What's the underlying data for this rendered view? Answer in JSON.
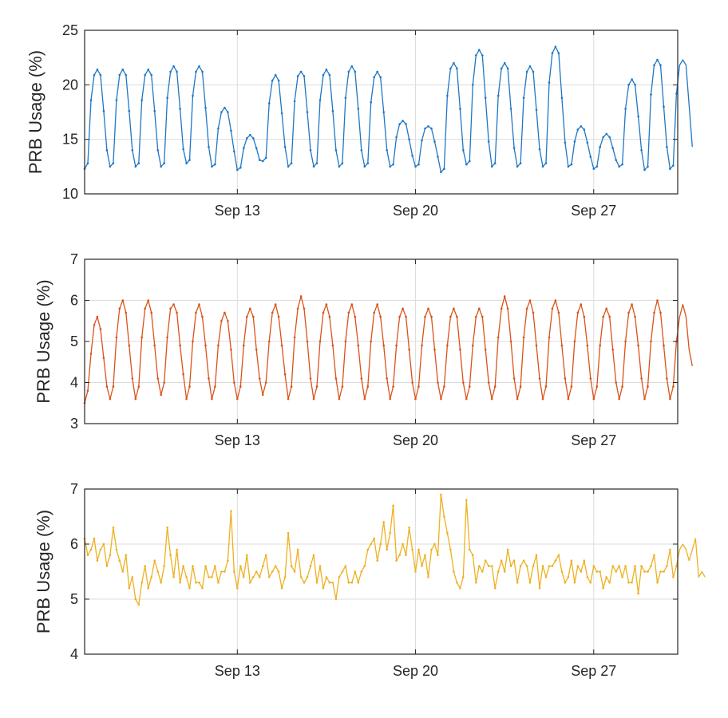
{
  "chart_data": [
    {
      "type": "line",
      "title": "",
      "xlabel": "",
      "ylabel": "PRB Usage (%)",
      "ylim": [
        10,
        25
      ],
      "yticks": [
        10,
        15,
        20,
        25
      ],
      "xlim_days": [
        7,
        30.3
      ],
      "xticks": [
        {
          "day": 13,
          "label": "Sep 13"
        },
        {
          "day": 20,
          "label": "Sep 20"
        },
        {
          "day": 27,
          "label": "Sep 27"
        }
      ],
      "grid": true,
      "color": "#1f77c4",
      "series": [
        {
          "x_start_day": 7,
          "x_step_days": 0.125,
          "daily_peaks": [
            21.5,
            21.5,
            21.5,
            21.8,
            21.8,
            18,
            15.5,
            21,
            21.3,
            21.5,
            21.8,
            21.3,
            16.8,
            16.3,
            22,
            23.2,
            22,
            21.7,
            23.5,
            16.2,
            15.5,
            20.5,
            22.3,
            22.3
          ],
          "daily_troughs": [
            12.5,
            12.5,
            12.5,
            12.5,
            12.8,
            12.5,
            12.2,
            13,
            12.5,
            12.5,
            12.5,
            12.5,
            12.5,
            12.5,
            12,
            12.7,
            12.5,
            12.5,
            12.5,
            12.5,
            12.3,
            12.5,
            12.2,
            12.3
          ],
          "values": [
            12.3,
            12.8,
            18.6,
            20.9,
            21.4,
            20.9,
            17.6,
            14.0,
            12.5,
            12.8,
            18.6,
            20.9,
            21.4,
            20.9,
            17.6,
            14.0,
            12.5,
            12.8,
            18.6,
            20.9,
            21.4,
            20.9,
            17.6,
            14.0,
            12.5,
            12.8,
            18.8,
            21.2,
            21.7,
            21.2,
            17.8,
            14.1,
            12.8,
            13.1,
            19.0,
            21.2,
            21.7,
            21.2,
            17.9,
            14.3,
            12.5,
            12.7,
            16.0,
            17.5,
            17.9,
            17.5,
            15.8,
            13.9,
            12.2,
            12.4,
            14.2,
            15.1,
            15.4,
            15.1,
            14.2,
            13.1,
            13.0,
            13.3,
            18.3,
            20.4,
            20.9,
            20.4,
            17.4,
            14.3,
            12.5,
            12.8,
            18.5,
            20.8,
            21.2,
            20.8,
            17.5,
            14.0,
            12.5,
            12.8,
            18.6,
            20.9,
            21.4,
            20.9,
            17.6,
            14.0,
            12.5,
            12.8,
            18.8,
            21.2,
            21.7,
            21.2,
            17.8,
            14.0,
            12.5,
            12.8,
            18.4,
            20.7,
            21.2,
            20.7,
            17.5,
            14.0,
            12.5,
            12.7,
            15.2,
            16.4,
            16.7,
            16.4,
            15.0,
            13.5,
            12.5,
            12.7,
            14.9,
            16.0,
            16.2,
            16.0,
            14.8,
            13.4,
            12.0,
            12.3,
            19.0,
            21.5,
            22.0,
            21.5,
            17.8,
            14.0,
            12.7,
            13.0,
            20.0,
            22.7,
            23.2,
            22.7,
            18.8,
            14.8,
            12.5,
            12.8,
            19.0,
            21.5,
            22.0,
            21.5,
            17.8,
            14.2,
            12.5,
            12.8,
            18.8,
            21.2,
            21.7,
            21.2,
            17.7,
            14.1,
            12.5,
            12.8,
            20.2,
            22.9,
            23.5,
            22.9,
            18.8,
            14.7,
            12.5,
            12.7,
            14.8,
            15.9,
            16.2,
            15.9,
            14.7,
            13.4,
            12.3,
            12.5,
            14.3,
            15.2,
            15.5,
            15.2,
            14.2,
            13.1,
            12.5,
            12.7,
            17.8,
            20.0,
            20.5,
            20.0,
            17.1,
            14.0,
            12.2,
            12.5,
            19.1,
            21.8,
            22.3,
            21.8,
            18.0,
            14.3,
            12.3,
            12.6,
            19.2,
            21.8,
            22.3,
            21.8,
            18.1,
            14.3
          ]
        }
      ]
    },
    {
      "type": "line",
      "title": "",
      "xlabel": "",
      "ylabel": "PRB Usage (%)",
      "ylim": [
        3,
        7
      ],
      "yticks": [
        3,
        4,
        5,
        6,
        7
      ],
      "xlim_days": [
        7,
        30.3
      ],
      "xticks": [
        {
          "day": 13,
          "label": "Sep 13"
        },
        {
          "day": 20,
          "label": "Sep 20"
        },
        {
          "day": 27,
          "label": "Sep 27"
        }
      ],
      "grid": true,
      "color": "#d95319",
      "series": [
        {
          "x_start_day": 7,
          "x_step_days": 0.125,
          "daily_peaks": [
            5.6,
            6.05,
            6.05,
            5.95,
            5.95,
            5.75,
            5.85,
            5.95,
            6.1,
            5.95,
            5.9,
            5.95,
            5.8,
            5.8,
            5.8,
            5.8,
            6.1,
            6.05,
            6.05,
            5.95,
            5.85,
            5.95,
            6.0,
            5.9
          ],
          "daily_troughs": [
            3.5,
            3.6,
            3.6,
            3.7,
            3.6,
            3.65,
            3.6,
            3.7,
            3.6,
            3.65,
            3.6,
            3.65,
            3.6,
            3.65,
            3.6,
            3.6,
            3.6,
            3.6,
            3.6,
            3.65,
            3.6,
            3.6,
            3.6,
            3.6
          ],
          "values": [
            3.5,
            3.8,
            4.7,
            5.4,
            5.6,
            5.3,
            4.6,
            3.9,
            3.6,
            3.9,
            5.1,
            5.8,
            6.0,
            5.7,
            4.9,
            4.1,
            3.6,
            3.9,
            5.1,
            5.8,
            6.0,
            5.7,
            4.9,
            4.1,
            3.7,
            4.0,
            5.1,
            5.8,
            5.9,
            5.7,
            4.9,
            4.2,
            3.6,
            3.9,
            5.0,
            5.7,
            5.9,
            5.6,
            4.9,
            4.1,
            3.6,
            3.9,
            4.9,
            5.5,
            5.7,
            5.5,
            4.8,
            4.0,
            3.6,
            3.9,
            4.9,
            5.6,
            5.8,
            5.6,
            4.8,
            4.1,
            3.7,
            4.0,
            5.0,
            5.7,
            5.9,
            5.6,
            4.9,
            4.2,
            3.6,
            3.9,
            5.1,
            5.8,
            6.1,
            5.8,
            5.0,
            4.1,
            3.6,
            3.9,
            5.0,
            5.7,
            5.9,
            5.6,
            4.9,
            4.1,
            3.6,
            3.9,
            5.0,
            5.7,
            5.9,
            5.6,
            4.9,
            4.1,
            3.6,
            3.9,
            5.0,
            5.7,
            5.9,
            5.6,
            4.9,
            4.1,
            3.6,
            3.9,
            4.9,
            5.6,
            5.8,
            5.6,
            4.8,
            4.0,
            3.6,
            3.9,
            4.9,
            5.6,
            5.8,
            5.6,
            4.8,
            4.0,
            3.6,
            3.9,
            4.9,
            5.6,
            5.8,
            5.6,
            4.8,
            4.0,
            3.6,
            3.9,
            4.9,
            5.6,
            5.8,
            5.6,
            4.8,
            4.0,
            3.6,
            3.9,
            5.1,
            5.8,
            6.1,
            5.8,
            5.0,
            4.1,
            3.6,
            3.9,
            5.1,
            5.8,
            6.0,
            5.7,
            4.9,
            4.1,
            3.6,
            3.9,
            5.1,
            5.8,
            6.0,
            5.7,
            4.9,
            4.1,
            3.6,
            3.9,
            5.0,
            5.7,
            5.9,
            5.6,
            4.9,
            4.1,
            3.6,
            3.9,
            4.9,
            5.6,
            5.8,
            5.6,
            4.8,
            4.0,
            3.6,
            3.9,
            5.0,
            5.7,
            5.9,
            5.6,
            4.9,
            4.1,
            3.6,
            3.9,
            5.0,
            5.7,
            6.0,
            5.7,
            4.9,
            4.1,
            3.6,
            3.9,
            5.0,
            5.6,
            5.9,
            5.6,
            4.8,
            4.4
          ]
        }
      ]
    },
    {
      "type": "line",
      "title": "",
      "xlabel": "",
      "ylabel": "PRB Usage (%)",
      "ylim": [
        4,
        7
      ],
      "yticks": [
        4,
        5,
        6,
        7
      ],
      "xlim_days": [
        7,
        30.3
      ],
      "xticks": [
        {
          "day": 13,
          "label": "Sep 13"
        },
        {
          "day": 20,
          "label": "Sep 20"
        },
        {
          "day": 27,
          "label": "Sep 27"
        }
      ],
      "grid": true,
      "color": "#edb120",
      "series": [
        {
          "x_start_day": 7,
          "x_step_days": 0.125,
          "values": [
            6.1,
            5.8,
            5.9,
            6.1,
            5.7,
            5.9,
            6.0,
            5.6,
            5.8,
            6.3,
            5.9,
            5.7,
            5.5,
            5.8,
            5.2,
            5.4,
            5.0,
            4.9,
            5.3,
            5.6,
            5.2,
            5.4,
            5.7,
            5.5,
            5.3,
            5.6,
            6.3,
            5.8,
            5.4,
            5.9,
            5.3,
            5.6,
            5.4,
            5.2,
            5.6,
            5.3,
            5.3,
            5.2,
            5.6,
            5.4,
            5.4,
            5.6,
            5.3,
            5.5,
            5.5,
            5.7,
            6.6,
            5.5,
            5.2,
            5.6,
            5.4,
            5.8,
            5.3,
            5.4,
            5.5,
            5.4,
            5.6,
            5.8,
            5.4,
            5.5,
            5.6,
            5.5,
            5.2,
            5.4,
            6.2,
            5.6,
            5.5,
            5.9,
            5.4,
            5.3,
            5.4,
            5.6,
            5.8,
            5.3,
            5.6,
            5.2,
            5.4,
            5.3,
            5.3,
            5.0,
            5.4,
            5.5,
            5.6,
            5.3,
            5.3,
            5.5,
            5.3,
            5.5,
            5.6,
            5.9,
            6.0,
            6.1,
            5.7,
            6.0,
            6.4,
            5.9,
            6.2,
            6.7,
            5.7,
            5.8,
            6.0,
            5.8,
            6.3,
            5.9,
            5.5,
            5.9,
            5.6,
            5.8,
            5.4,
            5.9,
            6.0,
            5.8,
            6.9,
            6.5,
            6.2,
            5.9,
            5.5,
            5.3,
            5.2,
            5.4,
            6.8,
            5.9,
            5.8,
            5.3,
            5.6,
            5.5,
            5.7,
            5.6,
            5.6,
            5.2,
            5.5,
            5.7,
            5.5,
            5.9,
            5.6,
            5.7,
            5.3,
            5.6,
            5.7,
            5.6,
            5.3,
            5.6,
            5.8,
            5.2,
            5.6,
            5.4,
            5.6,
            5.6,
            5.7,
            5.8,
            5.5,
            5.3,
            5.4,
            5.7,
            5.3,
            5.6,
            5.5,
            5.7,
            5.4,
            5.3,
            5.6,
            5.5,
            5.5,
            5.2,
            5.4,
            5.3,
            5.6,
            5.5,
            5.6,
            5.4,
            5.6,
            5.3,
            5.3,
            5.6,
            5.1,
            5.6,
            5.5,
            5.5,
            5.6,
            5.8,
            5.3,
            5.5,
            5.5,
            5.6,
            5.9,
            5.4,
            5.6,
            5.9,
            6.0,
            5.9,
            5.7,
            5.9,
            6.1,
            5.4,
            5.5,
            5.4
          ]
        }
      ]
    }
  ]
}
